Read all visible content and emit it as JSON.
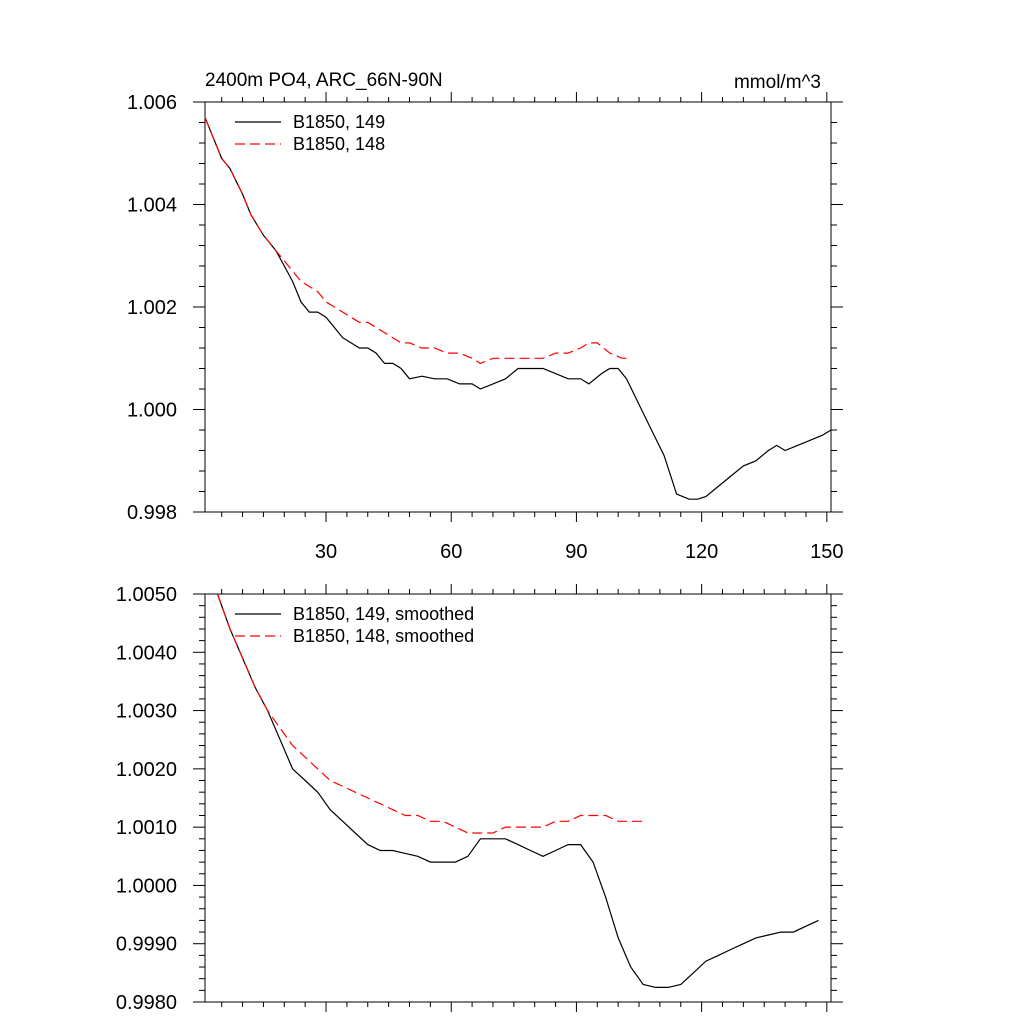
{
  "chart_data": [
    {
      "type": "line",
      "title": "2400m PO4, ARC_66N-90N",
      "units": "mmol/m^3",
      "xlim": [
        1,
        151
      ],
      "ylim": [
        0.998,
        1.006
      ],
      "x_ticks": [
        30,
        60,
        90,
        120,
        150
      ],
      "x_tick_labels": [
        "30",
        "60",
        "90",
        "120",
        "150"
      ],
      "y_ticks": [
        0.998,
        1.0,
        1.002,
        1.004,
        1.006
      ],
      "y_tick_labels": [
        "0.998",
        "1.000",
        "1.002",
        "1.004",
        "1.006"
      ],
      "legend_position": "top-left",
      "series": [
        {
          "name": "B1850, 149",
          "color": "#000000",
          "dash": "solid",
          "x": [
            1,
            3,
            5,
            7,
            10,
            12,
            15,
            18,
            20,
            22,
            24,
            26,
            28,
            30,
            32,
            34,
            36,
            38,
            40,
            42,
            44,
            46,
            48,
            50,
            53,
            56,
            59,
            62,
            65,
            67,
            70,
            73,
            76,
            79,
            82,
            85,
            88,
            91,
            93,
            96,
            98,
            100,
            102,
            105,
            108,
            111,
            114,
            117,
            119,
            121,
            124,
            127,
            130,
            133,
            136,
            138,
            140,
            143,
            146,
            149,
            151
          ],
          "y": [
            1.0057,
            1.0053,
            1.0049,
            1.0047,
            1.0042,
            1.0038,
            1.0034,
            1.0031,
            1.0028,
            1.0025,
            1.0021,
            1.0019,
            1.0019,
            1.0018,
            1.0016,
            1.0014,
            1.0013,
            1.0012,
            1.0012,
            1.0011,
            1.0009,
            1.0009,
            1.0008,
            1.0006,
            1.00065,
            1.0006,
            1.0006,
            1.0005,
            1.0005,
            1.0004,
            1.0005,
            1.0006,
            1.0008,
            1.0008,
            1.0008,
            1.0007,
            1.0006,
            1.0006,
            1.0005,
            1.0007,
            1.0008,
            1.0008,
            1.0006,
            1.0001,
            0.9996,
            0.9991,
            0.99835,
            0.99825,
            0.99825,
            0.9983,
            0.9985,
            0.9987,
            0.9989,
            0.999,
            0.9992,
            0.9993,
            0.9992,
            0.9993,
            0.9994,
            0.9995,
            0.9996
          ]
        },
        {
          "name": "B1850, 148",
          "color": "#ff0000",
          "dash": "dashed",
          "x": [
            1,
            3,
            5,
            7,
            10,
            12,
            15,
            18,
            20,
            22,
            24,
            26,
            28,
            30,
            32,
            34,
            36,
            38,
            40,
            42,
            44,
            46,
            48,
            50,
            53,
            56,
            59,
            62,
            65,
            67,
            70,
            73,
            76,
            79,
            82,
            85,
            88,
            91,
            93,
            95,
            98,
            101,
            103
          ],
          "y": [
            1.0057,
            1.0053,
            1.0049,
            1.0047,
            1.0042,
            1.0038,
            1.0034,
            1.0031,
            1.0029,
            1.0027,
            1.0025,
            1.0024,
            1.0023,
            1.0021,
            1.002,
            1.0019,
            1.0018,
            1.0017,
            1.0017,
            1.0016,
            1.0015,
            1.0014,
            1.0013,
            1.0013,
            1.0012,
            1.0012,
            1.0011,
            1.0011,
            1.001,
            1.0009,
            1.001,
            1.001,
            1.001,
            1.001,
            1.001,
            1.0011,
            1.0011,
            1.0012,
            1.0013,
            1.0013,
            1.0011,
            1.001,
            1.001
          ]
        }
      ]
    },
    {
      "type": "line",
      "title": "",
      "xlim": [
        1,
        151
      ],
      "ylim": [
        0.998,
        1.005
      ],
      "x_ticks": [
        30,
        60,
        90,
        120,
        150
      ],
      "y_ticks": [
        0.998,
        0.999,
        1.0,
        1.001,
        1.002,
        1.003,
        1.004,
        1.005
      ],
      "y_tick_labels": [
        "0.9980",
        "0.9990",
        "1.0000",
        "1.0010",
        "1.0020",
        "1.0030",
        "1.0040",
        "1.0050"
      ],
      "legend_position": "top-left",
      "series": [
        {
          "name": "B1850, 149, smoothed",
          "color": "#000000",
          "dash": "solid",
          "x": [
            4,
            7,
            10,
            13,
            16,
            19,
            22,
            25,
            28,
            31,
            34,
            37,
            40,
            43,
            46,
            49,
            52,
            55,
            58,
            61,
            64,
            67,
            70,
            73,
            76,
            79,
            82,
            85,
            88,
            91,
            94,
            97,
            100,
            103,
            106,
            109,
            112,
            115,
            118,
            121,
            124,
            127,
            130,
            133,
            136,
            139,
            142,
            145,
            148
          ],
          "y": [
            1.005,
            1.0044,
            1.0039,
            1.0034,
            1.003,
            1.0025,
            1.002,
            1.0018,
            1.0016,
            1.0013,
            1.0011,
            1.0009,
            1.0007,
            1.0006,
            1.0006,
            1.00055,
            1.0005,
            1.0004,
            1.0004,
            1.0004,
            1.0005,
            1.0008,
            1.0008,
            1.0008,
            1.0007,
            1.0006,
            1.0005,
            1.0006,
            1.0007,
            1.0007,
            1.0004,
            0.9998,
            0.9991,
            0.9986,
            0.9983,
            0.99825,
            0.99825,
            0.9983,
            0.9985,
            0.9987,
            0.9988,
            0.9989,
            0.999,
            0.9991,
            0.99915,
            0.9992,
            0.9992,
            0.9993,
            0.9994
          ]
        },
        {
          "name": "B1850, 148, smoothed",
          "color": "#ff0000",
          "dash": "dashed",
          "x": [
            4,
            7,
            10,
            13,
            16,
            19,
            22,
            25,
            28,
            31,
            34,
            37,
            40,
            43,
            46,
            49,
            52,
            55,
            58,
            61,
            64,
            67,
            70,
            73,
            76,
            79,
            82,
            85,
            88,
            91,
            94,
            97,
            100,
            103,
            106
          ],
          "y": [
            1.005,
            1.0044,
            1.0039,
            1.0034,
            1.003,
            1.0027,
            1.0024,
            1.0022,
            1.002,
            1.0018,
            1.0017,
            1.0016,
            1.0015,
            1.0014,
            1.0013,
            1.0012,
            1.0012,
            1.0011,
            1.0011,
            1.001,
            1.0009,
            1.0009,
            1.0009,
            1.001,
            1.001,
            1.001,
            1.001,
            1.0011,
            1.0011,
            1.0012,
            1.0012,
            1.0012,
            1.0011,
            1.0011,
            1.0011
          ]
        }
      ]
    }
  ]
}
